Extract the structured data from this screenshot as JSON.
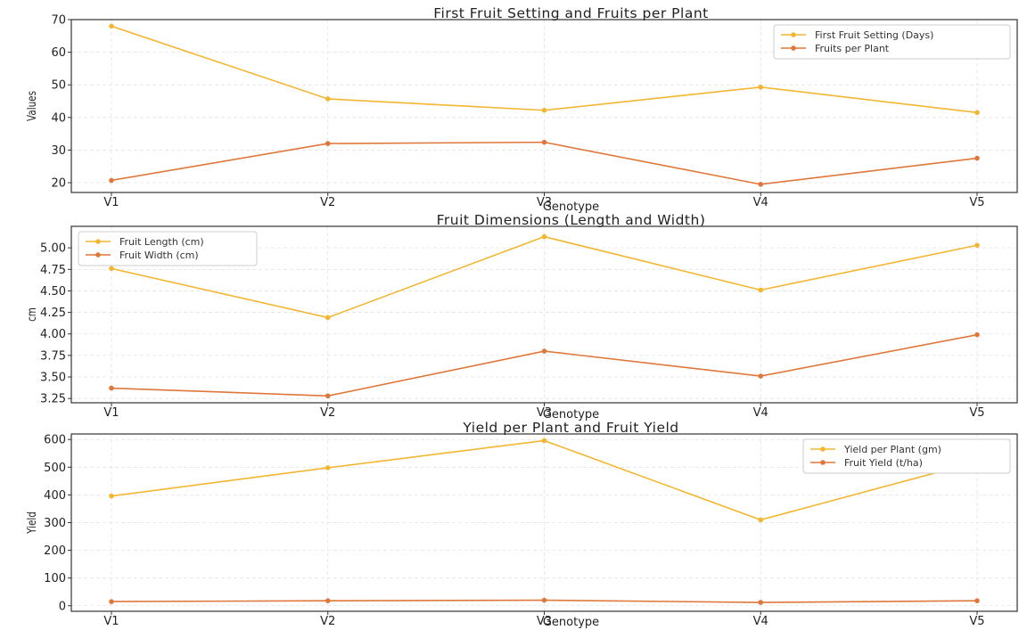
{
  "colors": {
    "series1": "#F3B631",
    "series2": "#E0773A"
  },
  "chart_data": [
    {
      "type": "line",
      "title": "First Fruit Setting and Fruits per Plant",
      "xlabel": "Genotype",
      "ylabel": "Values",
      "categories": [
        "V1",
        "V2",
        "V3",
        "V4",
        "V5"
      ],
      "ylim": [
        17,
        70
      ],
      "yticks": [
        20,
        30,
        40,
        50,
        60,
        70
      ],
      "ytick_labels": [
        "20",
        "30",
        "40",
        "50",
        "60",
        "70"
      ],
      "grid": true,
      "legend_position": "top-right",
      "series": [
        {
          "name": "First Fruit Setting (Days)",
          "values": [
            68.0,
            45.7,
            42.2,
            49.3,
            41.5
          ]
        },
        {
          "name": "Fruits per Plant",
          "values": [
            20.7,
            32.0,
            32.4,
            19.5,
            27.5
          ]
        }
      ]
    },
    {
      "type": "line",
      "title": "Fruit Dimensions (Length and Width)",
      "xlabel": "Genotype",
      "ylabel": "cm",
      "categories": [
        "V1",
        "V2",
        "V3",
        "V4",
        "V5"
      ],
      "ylim": [
        3.2,
        5.25
      ],
      "yticks": [
        3.25,
        3.5,
        3.75,
        4.0,
        4.25,
        4.5,
        4.75,
        5.0
      ],
      "ytick_labels": [
        "3.25",
        "3.50",
        "3.75",
        "4.00",
        "4.25",
        "4.50",
        "4.75",
        "5.00"
      ],
      "grid": true,
      "legend_position": "top-left",
      "series": [
        {
          "name": "Fruit Length (cm)",
          "values": [
            4.76,
            4.19,
            5.13,
            4.51,
            5.03
          ]
        },
        {
          "name": "Fruit Width (cm)",
          "values": [
            3.37,
            3.28,
            3.8,
            3.51,
            3.99
          ]
        }
      ]
    },
    {
      "type": "line",
      "title": "Yield per Plant and Fruit Yield",
      "xlabel": "Genotype",
      "ylabel": "Yield",
      "categories": [
        "V1",
        "V2",
        "V3",
        "V4",
        "V5"
      ],
      "ylim": [
        -20,
        620
      ],
      "yticks": [
        0,
        100,
        200,
        300,
        400,
        500,
        600
      ],
      "ytick_labels": [
        "0",
        "100",
        "200",
        "300",
        "400",
        "500",
        "600"
      ],
      "grid": true,
      "legend_position": "top-right",
      "series": [
        {
          "name": "Yield per Plant (gm)",
          "values": [
            396,
            498,
            596,
            310,
            520
          ]
        },
        {
          "name": "Fruit Yield (t/ha)",
          "values": [
            15,
            18,
            20,
            12,
            18
          ]
        }
      ]
    }
  ]
}
